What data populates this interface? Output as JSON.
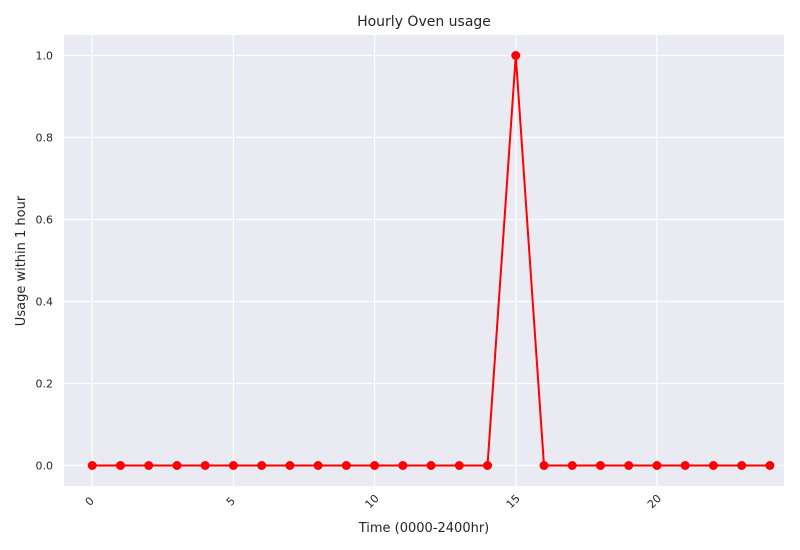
{
  "chart_data": {
    "type": "line",
    "title": "Hourly Oven usage",
    "xlabel": "Time (0000-2400hr)",
    "ylabel": "Usage within 1 hour",
    "x": [
      0,
      1,
      2,
      3,
      4,
      5,
      6,
      7,
      8,
      9,
      10,
      11,
      12,
      13,
      14,
      15,
      16,
      17,
      18,
      19,
      20,
      21,
      22,
      23,
      24
    ],
    "series": [
      {
        "values": [
          0,
          0,
          0,
          0,
          0,
          0,
          0,
          0,
          0,
          0,
          0,
          0,
          0,
          0,
          0,
          1,
          0,
          0,
          0,
          0,
          0,
          0,
          0,
          0,
          0
        ],
        "color": "#ff0000"
      }
    ],
    "xlim": [
      -1,
      24.5
    ],
    "ylim": [
      -0.05,
      1.05
    ],
    "xticks": [
      0,
      5,
      10,
      15,
      20
    ],
    "yticks": [
      0.0,
      0.2,
      0.4,
      0.6,
      0.8,
      1.0
    ],
    "ytick_labels": [
      "0.0",
      "0.2",
      "0.4",
      "0.6",
      "0.8",
      "1.0"
    ],
    "grid": true,
    "background": "#eaeaf2",
    "grid_color": "#ffffff"
  }
}
